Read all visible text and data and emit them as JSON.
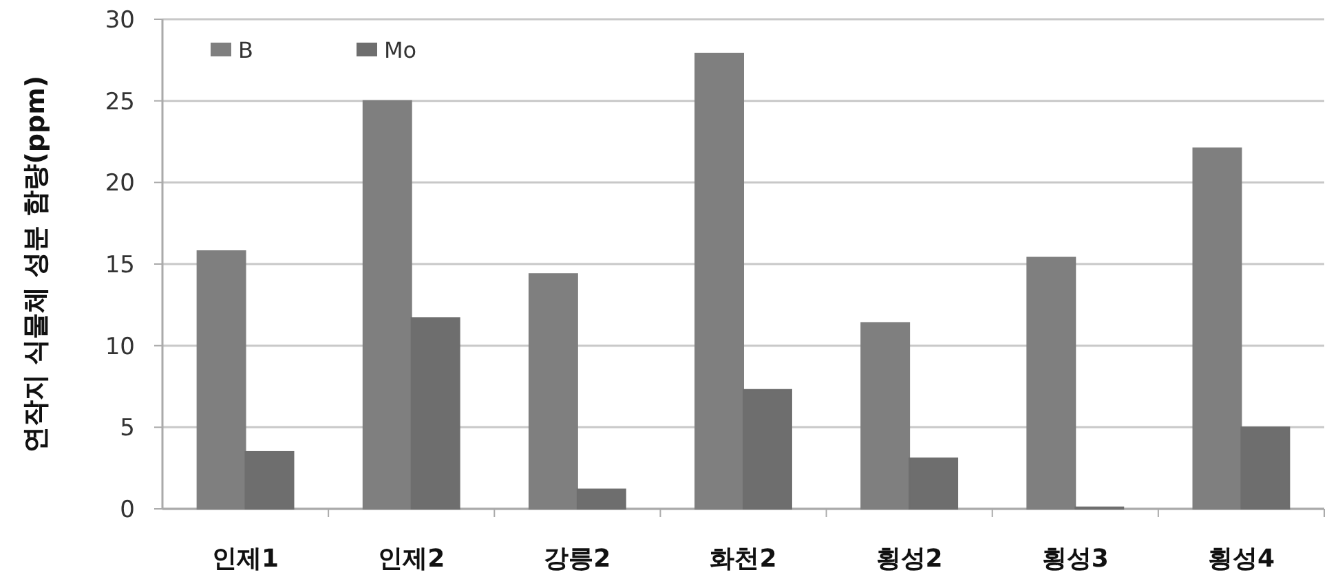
{
  "chart_data": {
    "type": "bar",
    "ylabel": "연작지 식물체 성분 함량(ppm)",
    "categories": [
      "인제1",
      "인제2",
      "강릉2",
      "화천2",
      "횡성2",
      "횡성3",
      "횡성4"
    ],
    "series": [
      {
        "name": "B",
        "color": "#7f7f7f",
        "values": [
          15.8,
          25.0,
          14.4,
          27.9,
          11.4,
          15.4,
          22.1
        ]
      },
      {
        "name": "Mo",
        "color": "#6e6e6e",
        "values": [
          3.5,
          11.7,
          1.2,
          7.3,
          3.1,
          0.1,
          5.0
        ]
      }
    ],
    "ylim": [
      0,
      30
    ],
    "yticks": [
      0,
      5,
      10,
      15,
      20,
      25,
      30
    ],
    "grid": "y",
    "legend": "top left"
  }
}
